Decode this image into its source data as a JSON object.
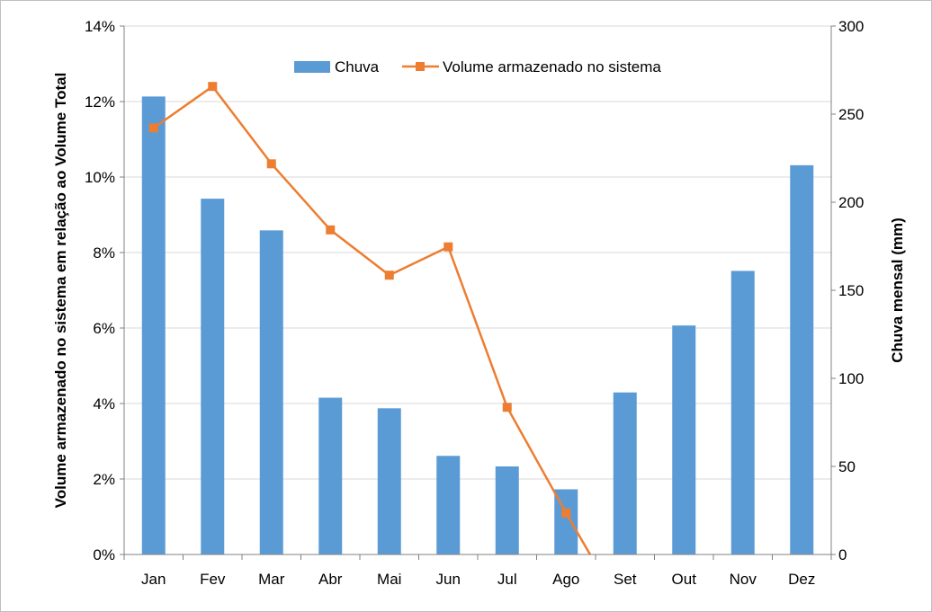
{
  "chart_data": {
    "type": "bar",
    "categories": [
      "Jan",
      "Fev",
      "Mar",
      "Abr",
      "Mai",
      "Jun",
      "Jul",
      "Ago",
      "Set",
      "Out",
      "Nov",
      "Dez"
    ],
    "series": [
      {
        "name": "Chuva",
        "type": "bar",
        "axis": "right",
        "color": "#5b9bd5",
        "values": [
          260,
          202,
          184,
          89,
          83,
          56,
          50,
          37,
          92,
          130,
          161,
          221
        ]
      },
      {
        "name": "Volume armazenado no sistema",
        "type": "line",
        "axis": "left",
        "color": "#ed7d31",
        "values": [
          11.3,
          12.4,
          10.35,
          8.6,
          7.4,
          8.15,
          3.9,
          1.1,
          -1.6,
          null,
          null,
          null
        ]
      }
    ],
    "ylabel_left": "Volume armazenado no sistema em relação ao Volume Total",
    "ylabel_right": "Chuva mensal (mm)",
    "ylim_left": [
      0,
      14
    ],
    "ylim_right": [
      0,
      300
    ],
    "left_ticks": [
      "0%",
      "2%",
      "4%",
      "6%",
      "8%",
      "10%",
      "12%",
      "14%"
    ],
    "right_ticks": [
      "0",
      "50",
      "100",
      "150",
      "200",
      "250",
      "300"
    ],
    "grid": true,
    "legend_position": "top"
  }
}
